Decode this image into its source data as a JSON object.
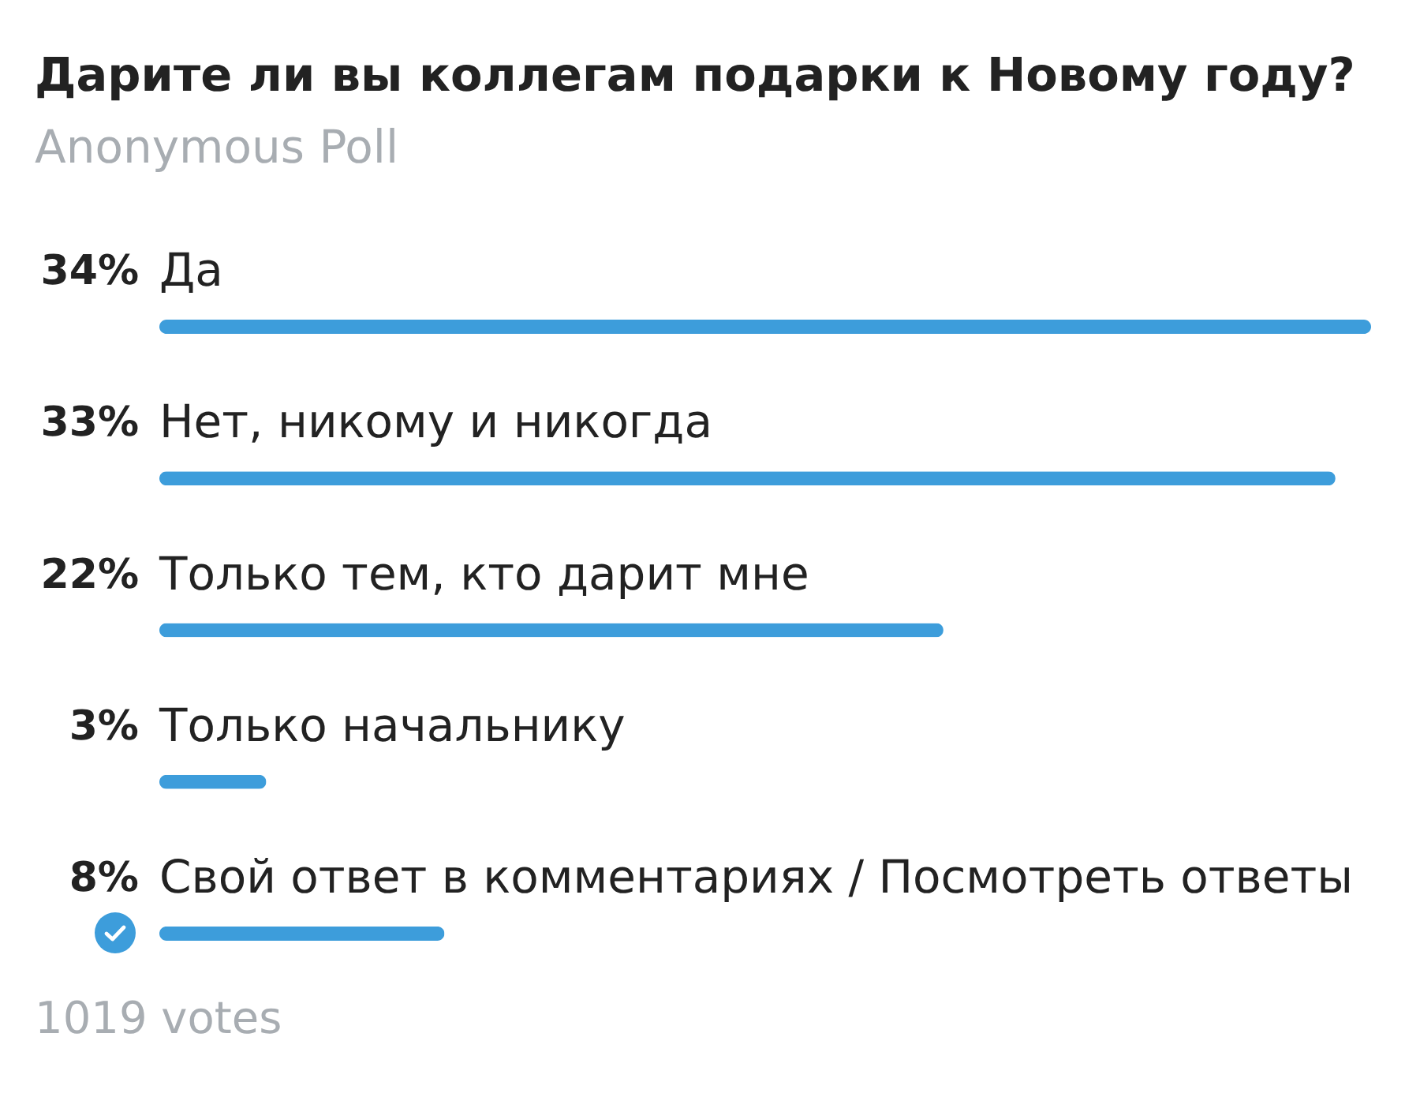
{
  "chart_data": {
    "type": "bar",
    "orientation": "horizontal",
    "title": "Дарите ли вы коллегам подарки к Новому году?",
    "subtitle": "Anonymous Poll",
    "categories": [
      "Да",
      "Нет, никому и никогда",
      "Только тем, кто дарит мне",
      "Только начальнику",
      "Свой ответ в комментариях / Посмотреть ответы"
    ],
    "values": [
      34,
      33,
      22,
      3,
      8
    ],
    "value_labels": [
      "34%",
      "33%",
      "22%",
      "3%",
      "8%"
    ],
    "color": "#3d9ddb",
    "tick_labels": false,
    "annotations": [
      "1019 votes"
    ]
  }
}
